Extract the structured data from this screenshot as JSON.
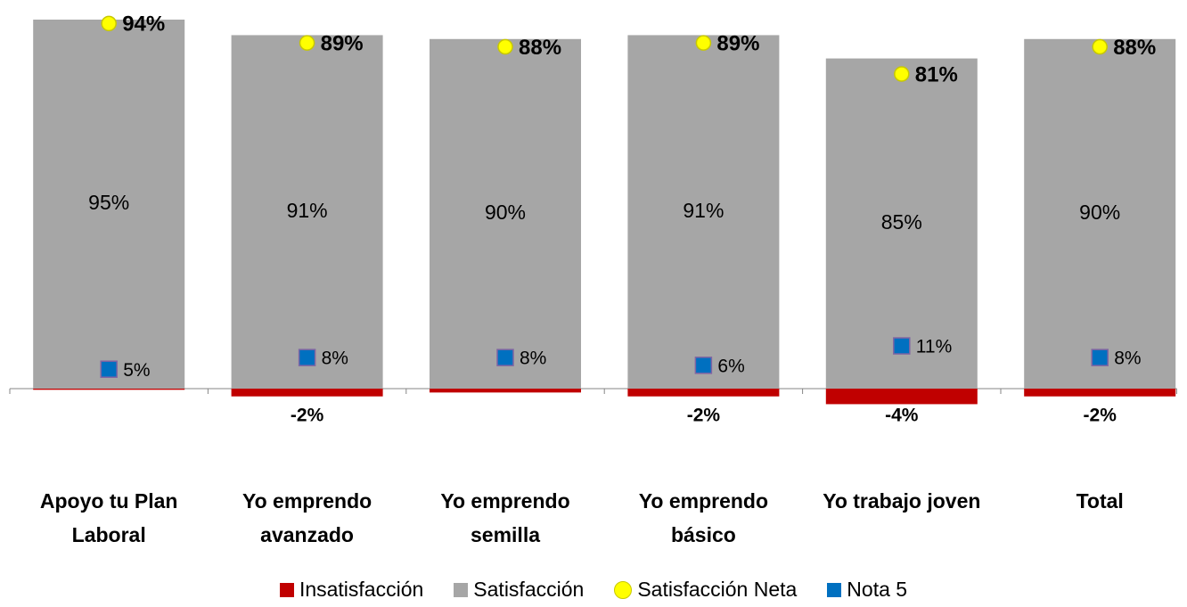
{
  "chart_data": {
    "type": "bar",
    "categories": [
      "Apoyo tu Plan Laboral",
      "Yo emprendo avanzado",
      "Yo emprendo semilla",
      "Yo emprendo básico",
      "Yo trabajo joven",
      "Total"
    ],
    "ylim": [
      -7,
      97
    ],
    "series": [
      {
        "name": "Insatisfacción",
        "color": "#c00000",
        "kind": "bar",
        "values": [
          -0.3,
          -2,
          -1,
          -2,
          -4,
          -2
        ],
        "value_labels": [
          null,
          "-2%",
          null,
          "-2%",
          "-4%",
          "-2%"
        ]
      },
      {
        "name": "Satisfacción",
        "color": "#a6a6a6",
        "kind": "bar",
        "values": [
          95,
          91,
          90,
          91,
          85,
          90
        ],
        "value_labels": [
          "95%",
          "91%",
          "90%",
          "91%",
          "85%",
          "90%"
        ]
      },
      {
        "name": "Satisfacción Neta",
        "color": "#ffff00",
        "kind": "point",
        "marker": "circle",
        "values": [
          94,
          89,
          88,
          89,
          81,
          88
        ],
        "value_labels": [
          "94%",
          "89%",
          "88%",
          "89%",
          "81%",
          "88%"
        ]
      },
      {
        "name": "Nota 5",
        "color": "#0070c0",
        "kind": "point",
        "marker": "square",
        "values": [
          5,
          8,
          8,
          6,
          11,
          8
        ],
        "value_labels": [
          "5%",
          "8%",
          "8%",
          "6%",
          "11%",
          "8%"
        ]
      }
    ]
  }
}
